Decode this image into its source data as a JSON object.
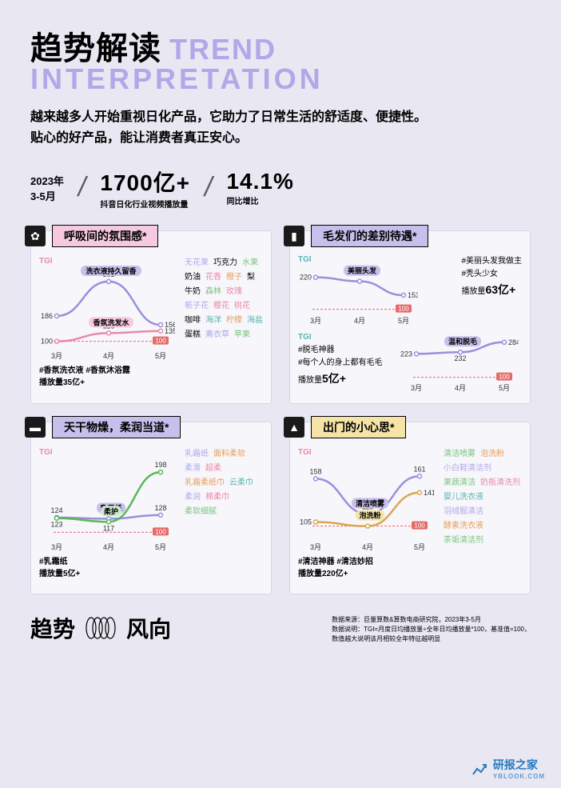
{
  "title_cn": "趋势解读",
  "title_en_line1": "TREND",
  "title_en_line2": "INTERPRETATION",
  "subtitle_l1": "越来越多人开始重视日化产品，它助力了日常生活的舒适度、便捷性。",
  "subtitle_l2": "贴心的好产品，能让消费者真正安心。",
  "period": "2023年\n3-5月",
  "stat1": {
    "value": "1700亿+",
    "label": "抖音日化行业视频播放量"
  },
  "stat2": {
    "value": "14.1%",
    "label": "同比增比"
  },
  "colors": {
    "accent_purple": "#9b8fdc",
    "line_green": "#5ab85a",
    "line_orange": "#d8a850",
    "baseline": "#e66a6a",
    "cloud_purple": "#b0a8e8",
    "cloud_green": "#7bc47f",
    "cloud_orange": "#e6a05a",
    "cloud_pink": "#e88aa8",
    "cloud_teal": "#5bb5b0"
  },
  "cards": [
    {
      "icon": "✿",
      "title": "呼吸间的氛围感*",
      "title_bg": "#f5c9e0",
      "tgi_color": "#e88aa8",
      "series": [
        {
          "name": "洗衣液持久留香",
          "color": "#9b8fdc",
          "pill_bg": "#c8c0ec",
          "values": [
            186,
            303,
            156
          ],
          "label_side": [
            "l",
            "t",
            "r"
          ]
        },
        {
          "name": "香氛洗发水",
          "color": "#e88aa8",
          "pill_bg": "#f5c9e0",
          "values": [
            100,
            128,
            135
          ],
          "label_side": [
            "l",
            "t",
            "r"
          ]
        }
      ],
      "x_labels": [
        "3月",
        "4月",
        "5月"
      ],
      "ylim": [
        80,
        330
      ],
      "baseline": 100,
      "caption_tags": "#香氛洗衣液 #香氛沐浴露",
      "caption_metric": "播放量",
      "caption_value": "35亿+",
      "word_cloud": [
        {
          "t": "无花果",
          "c": "#b0a8e8"
        },
        {
          "t": "巧克力",
          "c": "#000"
        },
        {
          "t": "水果",
          "c": "#7bc47f"
        },
        {
          "t": "奶油",
          "c": "#000"
        },
        {
          "t": "花香",
          "c": "#e88aa8"
        },
        {
          "t": "橙子",
          "c": "#e6a05a"
        },
        {
          "t": "梨",
          "c": "#000"
        },
        {
          "t": "牛奶",
          "c": "#000"
        },
        {
          "t": "森林",
          "c": "#7bc47f"
        },
        {
          "t": "玫瑰",
          "c": "#e88aa8"
        },
        {
          "t": "栀子花",
          "c": "#b0a8e8"
        },
        {
          "t": "樱花",
          "c": "#e88aa8"
        },
        {
          "t": "桃花",
          "c": "#e88aa8"
        },
        {
          "t": "咖啡",
          "c": "#000"
        },
        {
          "t": "海洋",
          "c": "#5bb5b0"
        },
        {
          "t": "柠檬",
          "c": "#e6a05a"
        },
        {
          "t": "海盐",
          "c": "#5bb5b0"
        },
        {
          "t": "蛋糕",
          "c": "#000"
        },
        {
          "t": "薰衣草",
          "c": "#b0a8e8"
        },
        {
          "t": "苹果",
          "c": "#7bc47f"
        }
      ]
    },
    {
      "icon": "▮",
      "title": "毛发们的差别待遇*",
      "title_bg": "#c8c0ec",
      "tgi_color": "#5bb5b0",
      "split": true,
      "top": {
        "series": [
          {
            "name": "美丽头发",
            "color": "#9b8fdc",
            "pill_bg": "#c8c0ec",
            "values": [
              220,
              205,
              153
            ],
            "label_side": [
              "l",
              "",
              "r"
            ]
          }
        ],
        "x_labels": [
          "3月",
          "4月",
          "5月"
        ],
        "ylim": [
          90,
          240
        ],
        "baseline": 100,
        "annot_tags": "#美丽头发我做主\n#秃头少女",
        "annot_metric": "播放量",
        "annot_value": "63亿+"
      },
      "bottom": {
        "series": [
          {
            "name": "温和脱毛",
            "color": "#9b8fdc",
            "pill_bg": "#c8c0ec",
            "values": [
              223,
              232,
              284
            ],
            "label_side": [
              "l",
              "b",
              "r"
            ]
          }
        ],
        "x_labels": [
          "3月",
          "4月",
          "5月"
        ],
        "ylim": [
          90,
          300
        ],
        "baseline": 100,
        "annot_tags": "#脱毛神器\n#每个人的身上都有毛毛",
        "annot_metric": "播放量",
        "annot_value": "5亿+"
      }
    },
    {
      "icon": "▬",
      "title": "天干物燥，柔润当道*",
      "title_bg": "#c8c0ec",
      "tgi_color": "#e88aa8",
      "series": [
        {
          "name": "乳霜纸",
          "color": "#9b8fdc",
          "pill_bg": "#c8c0ec",
          "values": [
            124,
            122,
            128
          ],
          "label_side": [
            "t",
            "t",
            "t"
          ]
        },
        {
          "name": "柔护",
          "color": "#5ab85a",
          "pill_bg": "#cdeacc",
          "values": [
            123,
            117,
            198
          ],
          "label_side": [
            "b",
            "b",
            "t"
          ]
        }
      ],
      "x_labels": [
        "3月",
        "4月",
        "5月"
      ],
      "ylim": [
        90,
        210
      ],
      "baseline": 100,
      "caption_tags": "#乳霜纸",
      "caption_metric": "播放量",
      "caption_value": "5亿+",
      "word_cloud": [
        {
          "t": "乳霜纸",
          "c": "#b0a8e8"
        },
        {
          "t": "面料柔软",
          "c": "#e6a05a"
        },
        {
          "t": "柔滑",
          "c": "#b0a8e8"
        },
        {
          "t": "超柔",
          "c": "#e88aa8"
        },
        {
          "t": "乳霜柔纸巾",
          "c": "#e6a05a"
        },
        {
          "t": "云柔巾",
          "c": "#5bb5b0"
        },
        {
          "t": "柔润",
          "c": "#b0a8e8"
        },
        {
          "t": "棉柔巾",
          "c": "#e88aa8"
        },
        {
          "t": "柔软细腻",
          "c": "#7bc47f"
        }
      ]
    },
    {
      "icon": "▲",
      "title": "出门的小心思*",
      "title_bg": "#f5e3a8",
      "tgi_color": "#e88aa8",
      "series": [
        {
          "name": "清洁喷雾",
          "color": "#9b8fdc",
          "pill_bg": "#c8c0ec",
          "values": [
            158,
            115,
            161
          ],
          "label_side": [
            "t",
            "t",
            "t"
          ]
        },
        {
          "name": "泡洗粉",
          "color": "#d8a850",
          "pill_bg": "#f5e3a8",
          "values": [
            105,
            100,
            141
          ],
          "label_side": [
            "l",
            "",
            "r"
          ]
        }
      ],
      "x_labels": [
        "3月",
        "4月",
        "5月"
      ],
      "ylim": [
        85,
        175
      ],
      "baseline": 100,
      "caption_tags": "#清洁神器 #清洁妙招",
      "caption_metric": "播放量",
      "caption_value": "220亿+",
      "word_cloud": [
        {
          "t": "清洁喷雾",
          "c": "#7bc47f"
        },
        {
          "t": "泡洗粉",
          "c": "#e6a05a"
        },
        {
          "t": "小白鞋清洁剂",
          "c": "#b0a8e8"
        },
        {
          "t": "果蔬清洁",
          "c": "#7bc47f"
        },
        {
          "t": "奶瓶清洗剂",
          "c": "#e88aa8"
        },
        {
          "t": "婴儿洗衣液",
          "c": "#5bb5b0"
        },
        {
          "t": "羽绒服清洁",
          "c": "#b0a8e8"
        },
        {
          "t": "酵素洗衣液",
          "c": "#e6a05a"
        },
        {
          "t": "茶垢清洁剂",
          "c": "#7bc47f"
        }
      ]
    }
  ],
  "footer": {
    "left1": "趋势",
    "left2": "风向",
    "source_l1": "数据来源：巨量算数&算数电商研究院，2023年3-5月",
    "source_l2": "数据说明：TGI=月度日均播放量÷全年日均播放量*100，基准值=100，",
    "source_l3": "数值越大说明该月相较全年特征越明显"
  },
  "watermark": {
    "name": "研报之家",
    "sub": "YBLOOK.COM"
  }
}
